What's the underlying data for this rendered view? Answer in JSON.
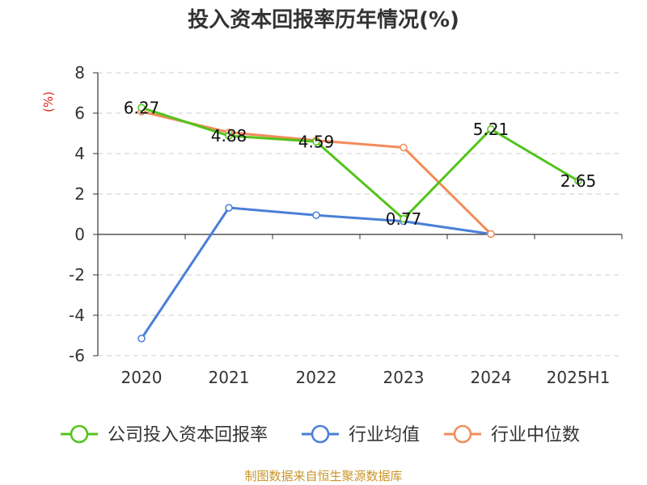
{
  "chart_data": {
    "type": "line",
    "title": "投入资本回报率历年情况(%)",
    "ylabel": "(%)",
    "categories": [
      "2020",
      "2021",
      "2022",
      "2023",
      "2024",
      "2025H1"
    ],
    "yticks": [
      "8",
      "6",
      "4",
      "2",
      "0",
      "-2",
      "-4",
      "-6"
    ],
    "ylim": [
      -6,
      8
    ],
    "grid": true,
    "legend_position": "bottom",
    "series": [
      {
        "name": "公司投入资本回报率",
        "color": "#52c41a",
        "values": [
          6.27,
          4.88,
          4.59,
          0.77,
          5.21,
          2.65
        ],
        "labels": [
          "6.27",
          "4.88",
          "4.59",
          "0.77",
          "5.21",
          "2.65"
        ]
      },
      {
        "name": "行业均值",
        "color": "#4a7fd8",
        "values": [
          -5.15,
          1.32,
          0.95,
          0.65,
          0.02,
          null
        ]
      },
      {
        "name": "行业中位数",
        "color": "#f28c5a",
        "values": [
          6.08,
          5.05,
          4.65,
          4.3,
          0.02,
          null
        ]
      }
    ],
    "source": "制图数据来自恒生聚源数据库"
  }
}
